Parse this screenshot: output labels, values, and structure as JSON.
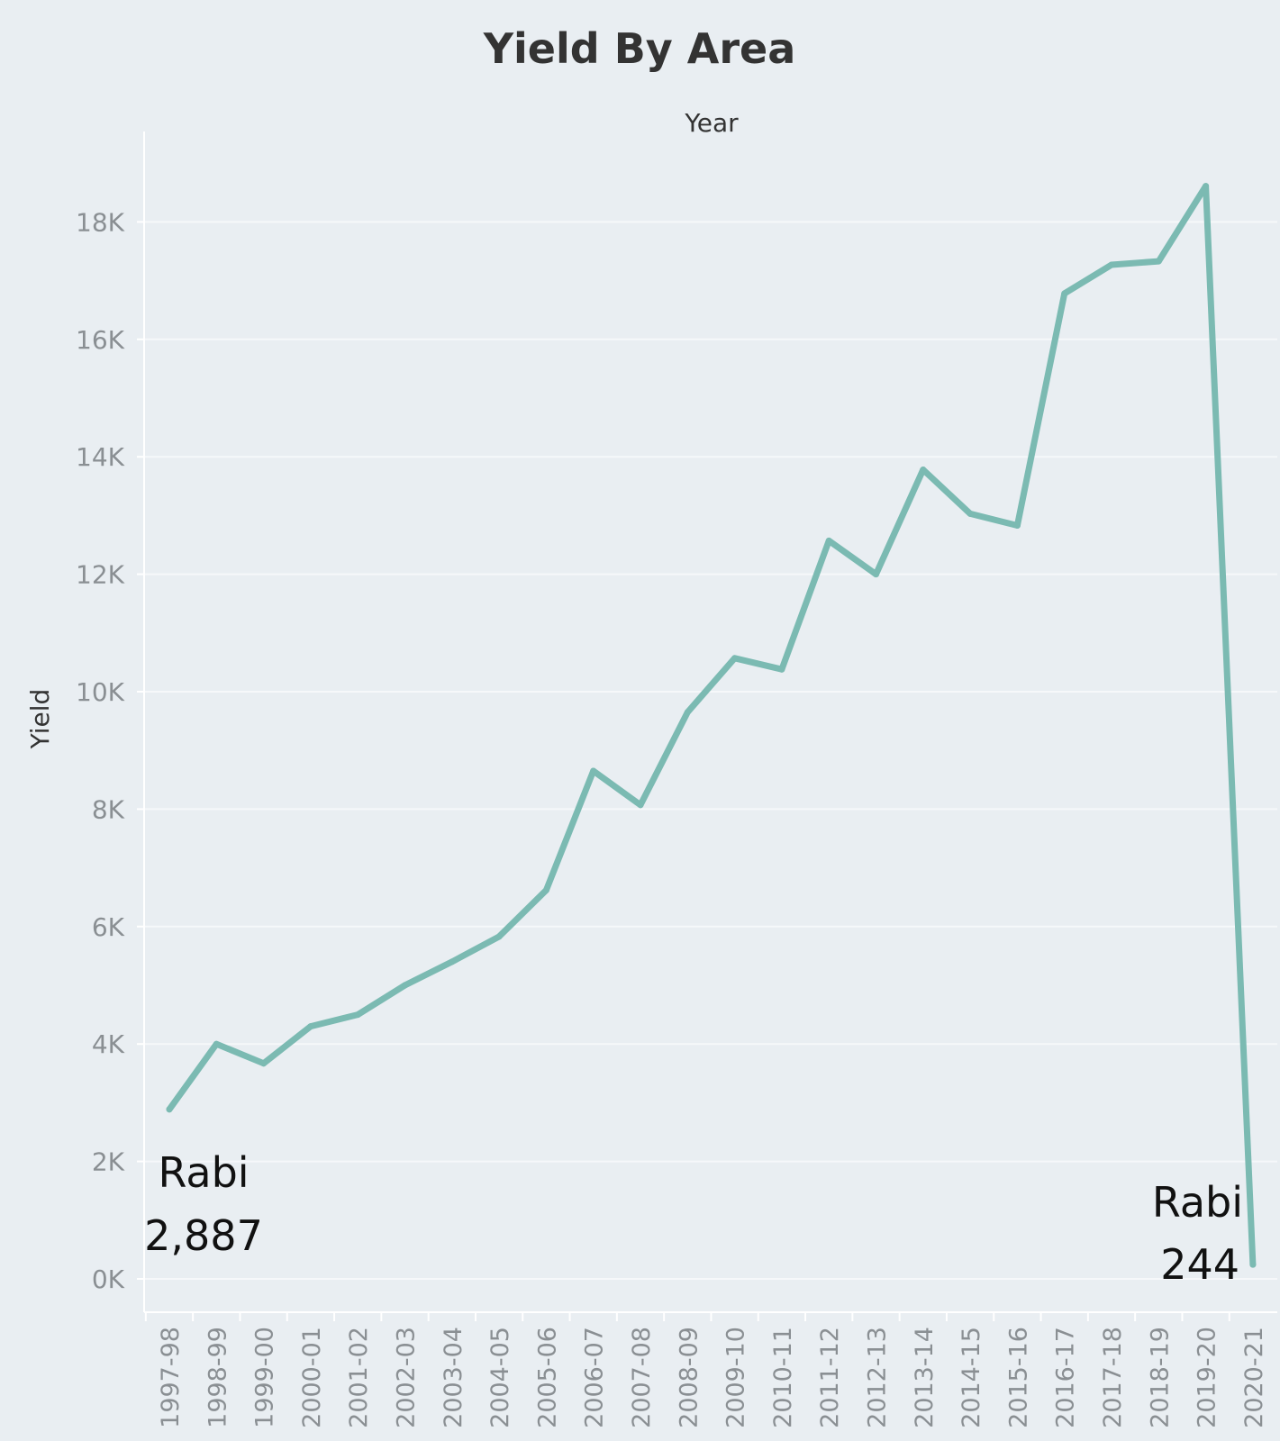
{
  "chart_data": {
    "type": "line",
    "title": "Yield By Area",
    "x_header": "Year",
    "ylabel": "Yield",
    "ylim": [
      -200,
      20000
    ],
    "y_ticks": [
      0,
      2000,
      4000,
      6000,
      8000,
      10000,
      12000,
      14000,
      16000,
      18000
    ],
    "y_tick_labels": [
      "0K",
      "2K",
      "4K",
      "6K",
      "8K",
      "10K",
      "12K",
      "14K",
      "16K",
      "18K"
    ],
    "grid": true,
    "line_color": "#7bbab2",
    "background_color": "#e9eef2",
    "categories": [
      "1997-98",
      "1998-99",
      "1999-00",
      "2000-01",
      "2001-02",
      "2002-03",
      "2003-04",
      "2004-05",
      "2005-06",
      "2006-07",
      "2007-08",
      "2008-09",
      "2009-10",
      "2010-11",
      "2011-12",
      "2012-13",
      "2013-14",
      "2014-15",
      "2015-16",
      "2016-17",
      "2017-18",
      "2018-19",
      "2019-20",
      "2020-21"
    ],
    "series": [
      {
        "values": [
          2887,
          4000,
          3670,
          4300,
          4500,
          5000,
          5400,
          5830,
          6620,
          8650,
          8070,
          9650,
          10570,
          10380,
          12570,
          12000,
          13780,
          13030,
          12830,
          16780,
          17270,
          17330,
          18610,
          244
        ]
      }
    ],
    "annotations": [
      {
        "category": "1997-98",
        "label": "Rabi",
        "value_text": "2,887"
      },
      {
        "category": "2020-21",
        "label": "Rabi",
        "value_text": "244"
      }
    ]
  }
}
